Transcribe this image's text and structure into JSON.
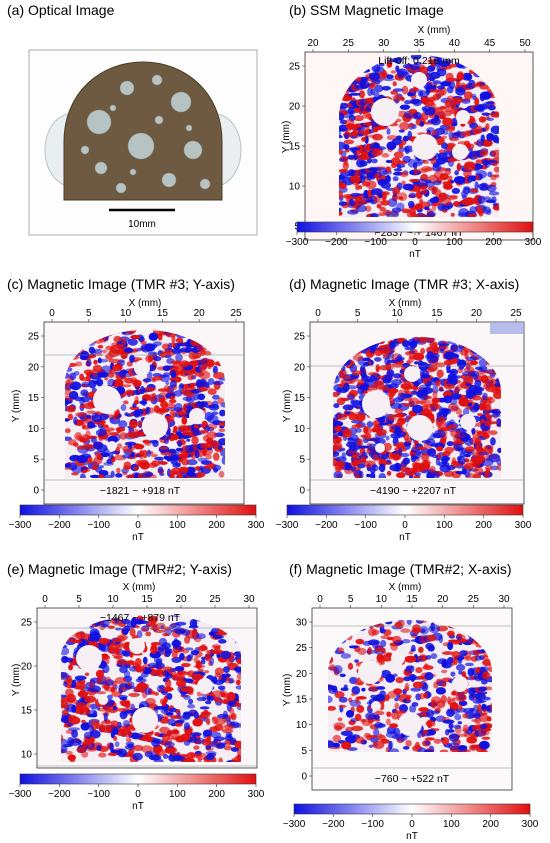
{
  "panels": {
    "a": {
      "title": "(a) Optical Image",
      "scale_bar": "10mm"
    },
    "b": {
      "title": "(b) SSM Magnetic Image",
      "liftoff": "Lift-off: 0.216 mm",
      "range": "−2837 ~ + 1467 nT",
      "xlabel": "X (mm)",
      "ylabel": "Y (mm)",
      "xticks": [
        "20",
        "25",
        "30",
        "35",
        "40",
        "45",
        "50"
      ],
      "yticks": [
        "5",
        "10",
        "15",
        "20",
        "25"
      ]
    },
    "c": {
      "title": "(c) Magnetic Image (TMR #3; Y-axis)",
      "range": "−1821 ~ +918 nT",
      "xlabel": "X (mm)",
      "ylabel": "Y (mm)",
      "xticks": [
        "0",
        "5",
        "10",
        "15",
        "20",
        "25"
      ],
      "yticks": [
        "0",
        "5",
        "10",
        "15",
        "20",
        "25"
      ]
    },
    "d": {
      "title": "(d) Magnetic Image (TMR #3; X-axis)",
      "range": "−4190 ~ +2207 nT",
      "xlabel": "X (mm)",
      "ylabel": "Y (mm)",
      "xticks": [
        "0",
        "5",
        "10",
        "15",
        "20",
        "25"
      ],
      "yticks": [
        "0",
        "5",
        "10",
        "15",
        "20",
        "25"
      ]
    },
    "e": {
      "title": "(e) Magnetic Image (TMR#2; Y-axis)",
      "range": "−1467 ~ +879 nT",
      "xlabel": "X (mm)",
      "ylabel": "Y (mm)",
      "xticks": [
        "0",
        "5",
        "10",
        "15",
        "20",
        "25",
        "30"
      ],
      "yticks": [
        "10",
        "15",
        "20",
        "25"
      ]
    },
    "f": {
      "title": "(f) Magnetic Image (TMR#2; X-axis)",
      "range": "−760 ~ +522 nT",
      "xlabel": "X (mm)",
      "ylabel": "Y (mm)",
      "xticks": [
        "0",
        "5",
        "10",
        "15",
        "20",
        "25",
        "30"
      ],
      "yticks": [
        "0",
        "5",
        "10",
        "15",
        "20",
        "25",
        "30"
      ]
    }
  },
  "colorbar": {
    "ticks": [
      "−300",
      "−200",
      "−100",
      "0",
      "100",
      "200",
      "300"
    ],
    "unit": "nT",
    "colors": {
      "negative": "#1010e0",
      "zero": "#ffffff",
      "positive": "#e01010"
    }
  }
}
